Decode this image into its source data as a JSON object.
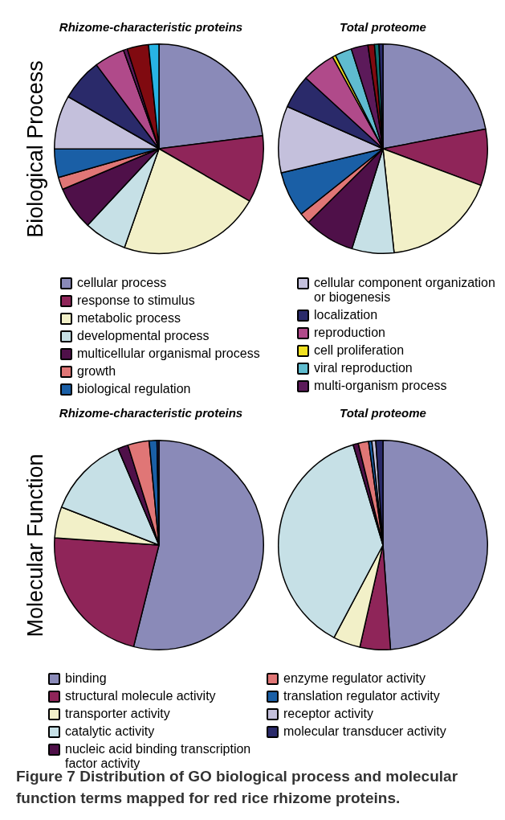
{
  "chart_data": [
    {
      "type": "pie",
      "ylabel": "Biological Process",
      "legend": "bottom",
      "categories": [
        "cellular process",
        "response to stimulus",
        "metabolic process",
        "developmental process",
        "multicellular organismal process",
        "growth",
        "biological regulation",
        "cellular component organization or biogenesis",
        "localization",
        "reproduction",
        "cell proliferation",
        "viral reproduction",
        "multi-organism process",
        null,
        null,
        null,
        null,
        null
      ],
      "colors": [
        "#8a8ab8",
        "#8f2559",
        "#f2f0c8",
        "#c6e0e6",
        "#4f1049",
        "#e07676",
        "#1a5fa6",
        "#c4c0dc",
        "#2a2a6a",
        "#b04a8a",
        "#f0e020",
        "#5fbccf",
        "#5c1a5a",
        "#800a10",
        "#28b4e4",
        "#107070",
        "#111111",
        "#2a2a6a"
      ],
      "series": [
        {
          "name": "Rhizome-characteristic proteins",
          "values": [
            23,
            10.3,
            22,
            6.6,
            6.7,
            1.9,
            4.4,
            8.3,
            6.5,
            4.7,
            null,
            null,
            0.6,
            3.3,
            1.6,
            null,
            null,
            null
          ]
        },
        {
          "name": "Total proteome",
          "values": [
            22,
            8.7,
            17.6,
            6.5,
            7.8,
            1.7,
            7,
            10.3,
            5.2,
            5.2,
            0.5,
            2.6,
            2.6,
            1,
            null,
            0.7,
            null,
            0.6
          ]
        }
      ]
    },
    {
      "type": "pie",
      "ylabel": "Molecular Function",
      "legend": "bottom",
      "categories": [
        "binding",
        "structural molecule activity",
        "transporter activity",
        "catalytic activity",
        "nucleic acid binding transcription factor activity",
        "enzyme regulator activity",
        "translation regulator activity",
        "receptor activity",
        "molecular transducer activity"
      ],
      "colors": [
        "#8a8ab8",
        "#8f2559",
        "#f2f0c8",
        "#c6e0e6",
        "#4f1049",
        "#e07676",
        "#1a5fa6",
        "#c4c0dc",
        "#2a2a6a"
      ],
      "series": [
        {
          "name": "Rhizome-characteristic proteins",
          "values": [
            53.9,
            22.2,
            4.8,
            12.7,
            1.6,
            3.3,
            1.2,
            null,
            0.3
          ]
        },
        {
          "name": "Total proteome",
          "values": [
            48.8,
            4.7,
            4.2,
            37.6,
            0.8,
            1.6,
            0.5,
            0.6,
            1.1
          ]
        }
      ],
      "annotations": [
        "Figure 7 Distribution of GO biological process and molecular function terms mapped for red rice rhizome proteins."
      ]
    }
  ]
}
